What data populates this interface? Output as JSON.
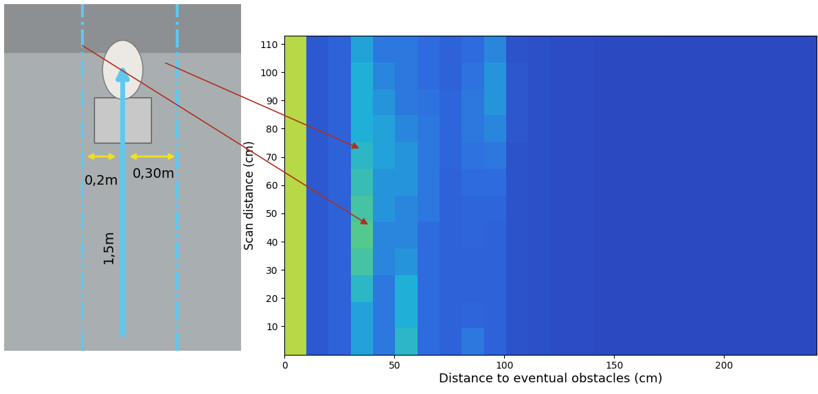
{
  "photo": {
    "labels": [
      "0,2m",
      "0,30m",
      "1,5m"
    ]
  },
  "chart_data": {
    "type": "heatmap",
    "xlabel": "Distance to eventual obstacles (cm)",
    "ylabel": "Scan distance (cm)",
    "xlim": [
      0,
      242
    ],
    "ylim": [
      0,
      113
    ],
    "xticks": [
      0,
      50,
      100,
      150,
      200
    ],
    "yticks": [
      10,
      20,
      30,
      40,
      50,
      60,
      70,
      80,
      90,
      100,
      110
    ],
    "cells": [
      [
        0.9,
        0.15,
        0.2,
        0.45,
        0.3,
        0.55,
        0.25,
        0.2,
        0.3,
        0.2,
        0.12,
        0.1,
        0.08,
        0.08,
        0.07,
        0.07,
        0.07,
        0.06,
        0.06,
        0.06,
        0.06,
        0.06,
        0.06,
        0.06
      ],
      [
        0.9,
        0.15,
        0.2,
        0.45,
        0.3,
        0.5,
        0.25,
        0.2,
        0.22,
        0.2,
        0.12,
        0.1,
        0.08,
        0.08,
        0.07,
        0.07,
        0.07,
        0.06,
        0.06,
        0.06,
        0.06,
        0.06,
        0.06,
        0.06
      ],
      [
        0.9,
        0.15,
        0.2,
        0.55,
        0.3,
        0.5,
        0.25,
        0.2,
        0.2,
        0.2,
        0.12,
        0.1,
        0.08,
        0.08,
        0.07,
        0.07,
        0.07,
        0.06,
        0.06,
        0.06,
        0.06,
        0.06,
        0.06,
        0.06
      ],
      [
        0.9,
        0.15,
        0.2,
        0.65,
        0.35,
        0.4,
        0.25,
        0.2,
        0.2,
        0.2,
        0.12,
        0.1,
        0.08,
        0.08,
        0.07,
        0.07,
        0.07,
        0.06,
        0.06,
        0.06,
        0.06,
        0.06,
        0.06,
        0.06
      ],
      [
        0.9,
        0.15,
        0.2,
        0.7,
        0.35,
        0.35,
        0.25,
        0.2,
        0.22,
        0.2,
        0.12,
        0.1,
        0.08,
        0.08,
        0.07,
        0.07,
        0.07,
        0.06,
        0.06,
        0.06,
        0.06,
        0.06,
        0.06,
        0.06
      ],
      [
        0.9,
        0.15,
        0.2,
        0.65,
        0.4,
        0.35,
        0.3,
        0.2,
        0.22,
        0.22,
        0.12,
        0.1,
        0.08,
        0.08,
        0.07,
        0.07,
        0.07,
        0.06,
        0.06,
        0.06,
        0.06,
        0.06,
        0.06,
        0.06
      ],
      [
        0.9,
        0.15,
        0.2,
        0.6,
        0.4,
        0.4,
        0.3,
        0.2,
        0.25,
        0.25,
        0.12,
        0.1,
        0.08,
        0.08,
        0.07,
        0.07,
        0.07,
        0.06,
        0.06,
        0.06,
        0.06,
        0.06,
        0.06,
        0.06
      ],
      [
        0.9,
        0.15,
        0.2,
        0.55,
        0.45,
        0.4,
        0.3,
        0.22,
        0.28,
        0.3,
        0.12,
        0.1,
        0.08,
        0.08,
        0.07,
        0.07,
        0.07,
        0.06,
        0.06,
        0.06,
        0.06,
        0.06,
        0.06,
        0.06
      ],
      [
        0.9,
        0.15,
        0.2,
        0.5,
        0.45,
        0.35,
        0.3,
        0.22,
        0.3,
        0.35,
        0.14,
        0.1,
        0.08,
        0.08,
        0.07,
        0.07,
        0.07,
        0.06,
        0.06,
        0.06,
        0.06,
        0.06,
        0.06,
        0.06
      ],
      [
        0.9,
        0.15,
        0.2,
        0.5,
        0.4,
        0.3,
        0.28,
        0.22,
        0.3,
        0.4,
        0.14,
        0.1,
        0.08,
        0.08,
        0.07,
        0.07,
        0.07,
        0.06,
        0.06,
        0.06,
        0.06,
        0.06,
        0.06,
        0.06
      ],
      [
        0.9,
        0.15,
        0.2,
        0.5,
        0.35,
        0.3,
        0.25,
        0.2,
        0.28,
        0.4,
        0.14,
        0.1,
        0.08,
        0.08,
        0.07,
        0.07,
        0.07,
        0.06,
        0.06,
        0.06,
        0.06,
        0.06,
        0.06,
        0.06
      ],
      [
        0.9,
        0.15,
        0.2,
        0.45,
        0.3,
        0.3,
        0.25,
        0.2,
        0.25,
        0.35,
        0.12,
        0.1,
        0.08,
        0.08,
        0.07,
        0.07,
        0.07,
        0.06,
        0.06,
        0.06,
        0.06,
        0.06,
        0.06,
        0.06
      ]
    ]
  }
}
